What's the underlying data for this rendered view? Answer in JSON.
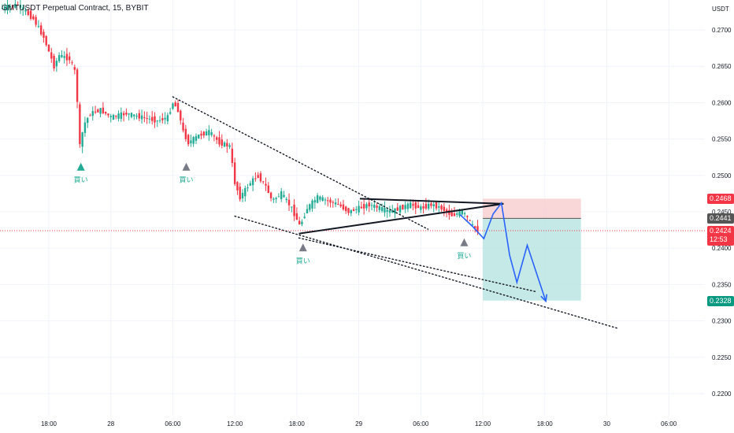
{
  "header": {
    "symbol_title": "GMTUSDT Perpetual Contract, 15, BYBIT"
  },
  "price_axis": {
    "currency": "USDT",
    "ticks": [
      "0.2700",
      "0.2650",
      "0.2600",
      "0.2550",
      "0.2500",
      "0.2450",
      "0.2400",
      "0.2350",
      "0.2300",
      "0.2250",
      "0.2200"
    ]
  },
  "time_axis": {
    "ticks": [
      {
        "label": "18:00",
        "t": 0
      },
      {
        "label": "28",
        "t": 6
      },
      {
        "label": "06:00",
        "t": 12
      },
      {
        "label": "12:00",
        "t": 18
      },
      {
        "label": "18:00",
        "t": 24
      },
      {
        "label": "29",
        "t": 30
      },
      {
        "label": "06:00",
        "t": 36
      },
      {
        "label": "12:00",
        "t": 42
      },
      {
        "label": "18:00",
        "t": 48
      },
      {
        "label": "30",
        "t": 54
      },
      {
        "label": "06:00",
        "t": 60
      }
    ]
  },
  "price_labels": {
    "stop": {
      "value": "0.2468",
      "color": "#f23645"
    },
    "entry": {
      "value": "0.2441",
      "color": "#555555"
    },
    "current": {
      "value": "0.2424",
      "countdown": "12:53",
      "color": "#f23645"
    },
    "target": {
      "value": "0.2328",
      "color": "#089981"
    }
  },
  "signals": [
    {
      "label": "買い",
      "t": 3.1,
      "price": 0.2512,
      "color": "#22ab94"
    },
    {
      "label": "買い",
      "t": 13.3,
      "price": 0.2512,
      "color": "#787b86"
    },
    {
      "label": "買い",
      "t": 24.6,
      "price": 0.2401,
      "color": "#787b86"
    },
    {
      "label": "買い",
      "t": 40.2,
      "price": 0.2408,
      "color": "#787b86"
    }
  ],
  "colors": {
    "up": "#22ab94",
    "down": "#f23645",
    "projection": "#2962ff",
    "stop_zone": "#f7c9cc",
    "profit_zone": "#b2e2df"
  },
  "chart_data": {
    "type": "candlestick",
    "title": "GMTUSDT Perpetual Contract, 15, BYBIT",
    "y_axis": {
      "unit": "USDT",
      "range": [
        0.2185,
        0.274
      ]
    },
    "x_axis_note": "t = hours after first 18:00 tick",
    "price_path": [
      [
        -4.5,
        0.273
      ],
      [
        -3.0,
        0.2735
      ],
      [
        -1.5,
        0.2715
      ],
      [
        -0.5,
        0.269
      ],
      [
        0.5,
        0.265
      ],
      [
        1.0,
        0.2665
      ],
      [
        2.0,
        0.266
      ],
      [
        2.6,
        0.264
      ],
      [
        3.0,
        0.254
      ],
      [
        3.4,
        0.257
      ],
      [
        4.0,
        0.2585
      ],
      [
        5.0,
        0.259
      ],
      [
        6.0,
        0.258
      ],
      [
        7.5,
        0.2585
      ],
      [
        9.0,
        0.258
      ],
      [
        10.5,
        0.2575
      ],
      [
        11.5,
        0.258
      ],
      [
        12.0,
        0.26
      ],
      [
        12.5,
        0.259
      ],
      [
        13.0,
        0.256
      ],
      [
        13.5,
        0.2545
      ],
      [
        14.5,
        0.2555
      ],
      [
        15.5,
        0.256
      ],
      [
        16.5,
        0.2545
      ],
      [
        17.5,
        0.254
      ],
      [
        18.0,
        0.249
      ],
      [
        18.5,
        0.247
      ],
      [
        19.5,
        0.249
      ],
      [
        20.2,
        0.25
      ],
      [
        21.0,
        0.2485
      ],
      [
        21.6,
        0.2465
      ],
      [
        22.5,
        0.2475
      ],
      [
        23.5,
        0.2455
      ],
      [
        24.3,
        0.243
      ],
      [
        25.0,
        0.2455
      ],
      [
        26.0,
        0.247
      ],
      [
        27.0,
        0.2465
      ],
      [
        28.0,
        0.246
      ],
      [
        29.0,
        0.245
      ],
      [
        30.0,
        0.2455
      ],
      [
        31.0,
        0.246
      ],
      [
        32.0,
        0.2455
      ],
      [
        33.0,
        0.245
      ],
      [
        34.0,
        0.2455
      ],
      [
        35.0,
        0.246
      ],
      [
        36.0,
        0.2455
      ],
      [
        37.0,
        0.246
      ],
      [
        38.0,
        0.2455
      ],
      [
        39.0,
        0.2445
      ],
      [
        40.0,
        0.245
      ],
      [
        40.6,
        0.244
      ],
      [
        41.0,
        0.243
      ],
      [
        41.5,
        0.2424
      ]
    ],
    "trendlines": [
      {
        "style": "dotted",
        "from": [
          12.0,
          0.2608
        ],
        "to": [
          36.7,
          0.2426
        ]
      },
      {
        "style": "dotted",
        "from": [
          18.0,
          0.2444
        ],
        "to": [
          55.0,
          0.229
        ]
      },
      {
        "style": "dotted",
        "from": [
          24.2,
          0.2414
        ],
        "to": [
          47.2,
          0.234
        ]
      },
      {
        "style": "solid",
        "from": [
          30.1,
          0.2468
        ],
        "to": [
          44.0,
          0.2461
        ]
      },
      {
        "style": "solid",
        "from": [
          24.2,
          0.242
        ],
        "to": [
          44.0,
          0.2461
        ]
      }
    ],
    "projection": [
      [
        39.8,
        0.2446
      ],
      [
        41.0,
        0.243
      ],
      [
        42.1,
        0.2413
      ],
      [
        43.0,
        0.2447
      ],
      [
        43.8,
        0.2462
      ],
      [
        44.6,
        0.239
      ],
      [
        45.3,
        0.2353
      ],
      [
        46.3,
        0.2404
      ],
      [
        48.1,
        0.2327
      ]
    ],
    "position": {
      "t_start": 42.0,
      "t_end": 51.5,
      "entry": 0.2441,
      "stop": 0.2468,
      "target": 0.2328
    },
    "current_price": 0.2424
  }
}
